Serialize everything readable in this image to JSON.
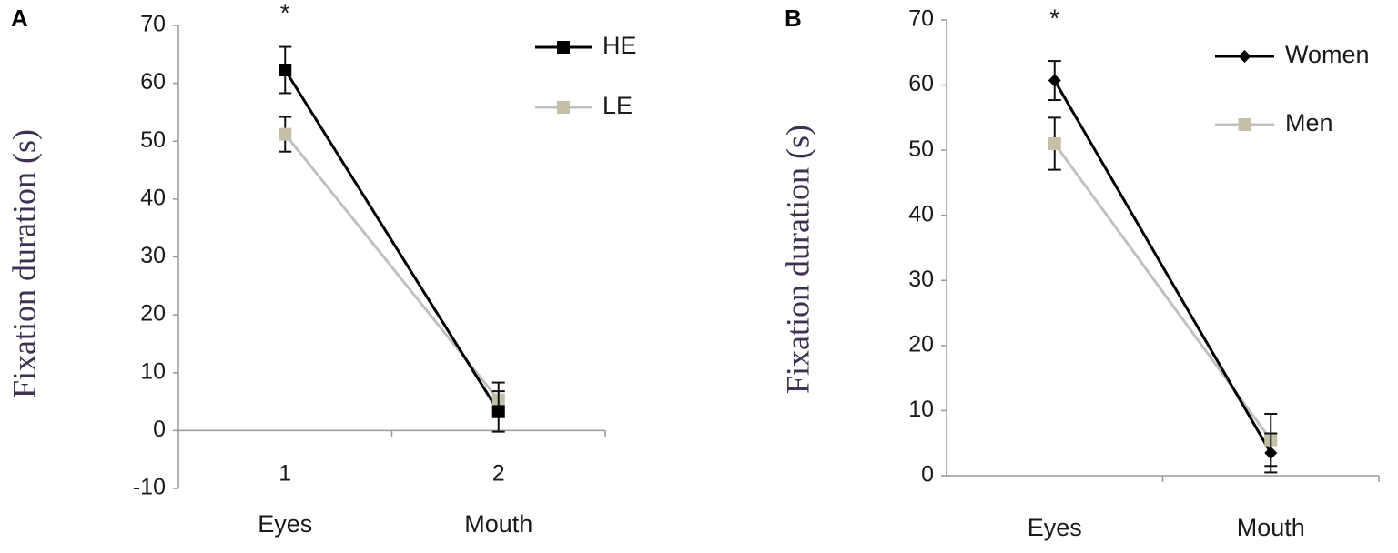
{
  "chart_data": [
    {
      "type": "line",
      "panel": "A",
      "y_label": "Fixation duration (s)",
      "annotation": "*",
      "categories": [
        "Eyes",
        "Mouth"
      ],
      "xtick_labels": [
        "1",
        "2"
      ],
      "ylim": [
        -10,
        70
      ],
      "yticks": [
        -10,
        0,
        10,
        20,
        30,
        40,
        50,
        60,
        70
      ],
      "series": [
        {
          "name": "HE",
          "color": "#000000",
          "line_color": "#000000",
          "marker": "square",
          "values": [
            62.3,
            3.3
          ],
          "errors": [
            4,
            3.5
          ]
        },
        {
          "name": "LE",
          "color": "#c4c0a8",
          "line_color": "#c0c0c0",
          "marker": "square",
          "values": [
            51.2,
            5.3
          ],
          "errors": [
            3,
            3
          ]
        }
      ]
    },
    {
      "type": "line",
      "panel": "B",
      "y_label": "Fixation duration (s)",
      "annotation": "*",
      "categories": [
        "Eyes",
        "Mouth"
      ],
      "ylim": [
        0,
        70
      ],
      "yticks": [
        0,
        10,
        20,
        30,
        40,
        50,
        60,
        70
      ],
      "series": [
        {
          "name": "Women",
          "color": "#000000",
          "line_color": "#000000",
          "marker": "diamond",
          "values": [
            60.7,
            3.5
          ],
          "errors": [
            3,
            3
          ]
        },
        {
          "name": "Men",
          "color": "#c4c0a8",
          "line_color": "#c0c0c0",
          "marker": "square",
          "values": [
            51,
            5.5
          ],
          "errors": [
            4,
            4
          ]
        }
      ]
    }
  ]
}
